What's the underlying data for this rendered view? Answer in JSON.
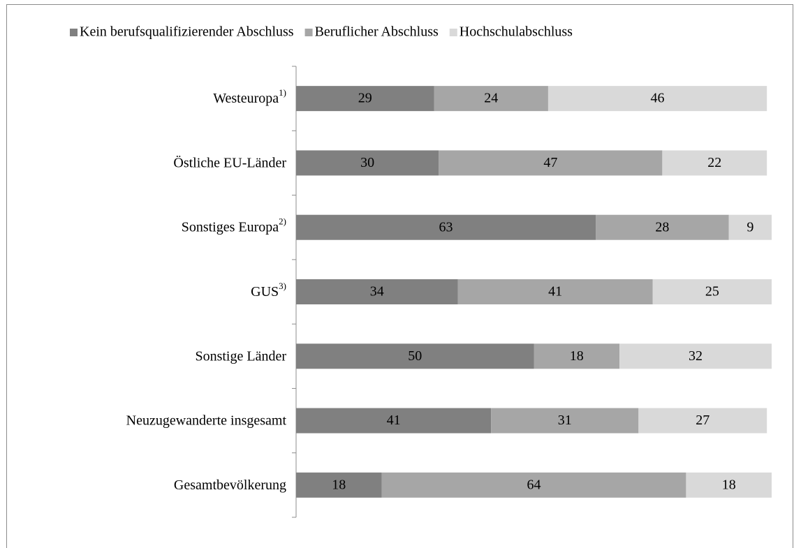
{
  "chart_data": {
    "type": "stacked_barh",
    "categories": [
      "Westeuropa",
      "Östliche EU-Länder",
      "Sonstiges Europa",
      "GUS",
      "Sonstige Länder",
      "Neuzugewanderte insgesamt",
      "Gesamtbevölkerung"
    ],
    "category_notes": [
      "1)",
      null,
      "2)",
      "3)",
      null,
      null,
      null
    ],
    "series": [
      {
        "name": "Kein berufsqualifizierender Abschluss",
        "color": "#808080",
        "values": [
          29,
          30,
          63,
          34,
          50,
          41,
          18
        ]
      },
      {
        "name": "Beruflicher Abschluss",
        "color": "#a6a6a6",
        "values": [
          24,
          47,
          28,
          41,
          18,
          31,
          64
        ]
      },
      {
        "name": "Hochschulabschluss",
        "color": "#d9d9d9",
        "values": [
          46,
          22,
          9,
          25,
          32,
          27,
          18
        ]
      }
    ],
    "xlim": [
      0,
      100
    ],
    "legend": "top"
  }
}
